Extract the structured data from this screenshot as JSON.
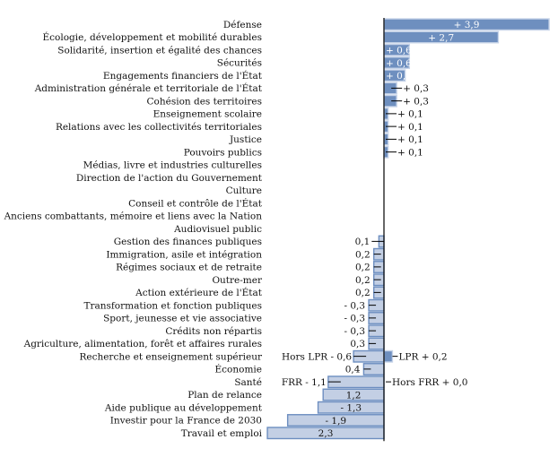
{
  "colors": {
    "positive_fill": "#6e8fbf",
    "positive_edge": "#c6d3e8",
    "negative_fill": "#c3cfe4",
    "negative_edge": "#6d8ec0",
    "axis": "#000000",
    "text": "#111111"
  },
  "chart_data": {
    "type": "bar",
    "orientation": "horizontal",
    "title": "",
    "xlabel": "",
    "ylabel": "",
    "grid": false,
    "xlim": [
      -2.3,
      3.9
    ],
    "categories": [
      "Défense",
      "Écologie, développement et mobilité durables",
      "Solidarité, insertion et égalité des chances",
      "Sécurités",
      "Engagements financiers de l'État",
      "Administration générale et territoriale de l'État",
      "Cohésion des territoires",
      "Enseignement scolaire",
      "Relations avec les collectivités territoriales",
      "Justice",
      "Pouvoirs publics",
      "Médias, livre et industries culturelles",
      "Direction de l'action du Gouvernement",
      "Culture",
      "Conseil et contrôle de l'État",
      "Anciens combattants, mémoire et liens avec la Nation",
      "Audiovisuel public",
      "Gestion des finances publiques",
      "Immigration, asile et intégration",
      "Régimes sociaux et de retraite",
      "Outre-mer",
      "Action extérieure de l'État",
      "Transformation et fonction publiques",
      "Sport, jeunesse et vie associative",
      "Crédits non répartis",
      "Agriculture, alimentation, forêt et affaires rurales",
      "Recherche et enseignement supérieur",
      "Économie",
      "Santé",
      "Plan de relance",
      "Aide publique au développement",
      "Investir pour la France de 2030",
      "Travail et emploi"
    ],
    "values": [
      3.9,
      2.7,
      0.6,
      0.6,
      0.5,
      0.3,
      0.3,
      0.1,
      0.1,
      0.1,
      0.1,
      0,
      0,
      0,
      0,
      0,
      0,
      -0.1,
      -0.2,
      -0.2,
      -0.2,
      -0.2,
      -0.3,
      -0.3,
      -0.3,
      -0.3,
      -0.4,
      -0.4,
      -1.1,
      -1.2,
      -1.3,
      -1.9,
      -2.3
    ],
    "data_labels": [
      "+ 3,9",
      "+ 2,7",
      "+ 0,6",
      "+ 0,6",
      "+ 0,5",
      "+ 0,3",
      "+ 0,3",
      "+ 0,1",
      "+ 0,1",
      "+ 0,1",
      "+ 0,1",
      "",
      "",
      "",
      "",
      "",
      "",
      "0,1",
      "0,2",
      "0,2",
      "0,2",
      "0,2",
      "- 0,3",
      "- 0,3",
      "- 0,3",
      "0,3",
      "",
      "0,4",
      "",
      "1,2",
      "- 1,3",
      "- 1,9",
      "2,3"
    ],
    "split_bars": [
      {
        "category": "Recherche et enseignement supérieur",
        "negative": {
          "label": "Hors LPR - 0,6",
          "value": -0.6
        },
        "positive": {
          "label": "LPR + 0,2",
          "value": 0.2
        }
      },
      {
        "category": "Santé",
        "negative": {
          "label": "FRR - 1,1",
          "value": -1.1
        },
        "positive": {
          "label": "Hors FRR + 0,0",
          "value": 0.0
        }
      }
    ]
  }
}
